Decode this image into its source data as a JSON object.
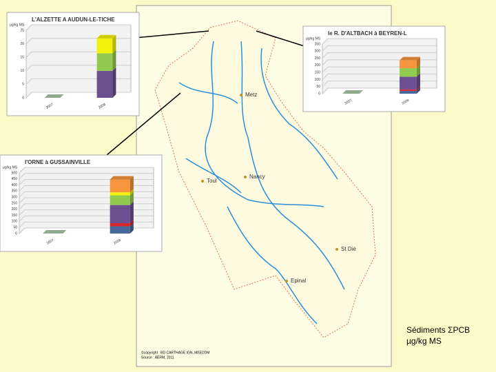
{
  "chart_data": [
    {
      "type": "bar",
      "stacked": true,
      "title": "L'ALZETTE A AUDUN-LE-TICHE",
      "y_label": "µg/kg MS",
      "categories": [
        "2007",
        "2008"
      ],
      "ylim": [
        0,
        25
      ],
      "yticks": [
        0,
        5,
        10,
        15,
        20,
        25
      ],
      "grid": true,
      "series": [
        {
          "color": "#6b4f8f",
          "values": [
            0,
            10
          ]
        },
        {
          "color": "#92c94f",
          "values": [
            0,
            6.5
          ]
        },
        {
          "color": "#f4f10a",
          "values": [
            0,
            5.5
          ]
        }
      ]
    },
    {
      "type": "bar",
      "stacked": true,
      "title": "le R. D'ALTBACH à BEYREN-L",
      "y_label": "µg/kg MS",
      "categories": [
        "2007",
        "2008"
      ],
      "ylim": [
        0,
        350
      ],
      "yticks": [
        0,
        50,
        100,
        150,
        200,
        250,
        300,
        350
      ],
      "grid": true,
      "series": [
        {
          "color": "#46689a",
          "values": [
            0,
            20
          ]
        },
        {
          "color": "#d8242a",
          "values": [
            0,
            10
          ]
        },
        {
          "color": "#6b4f8f",
          "values": [
            0,
            90
          ]
        },
        {
          "color": "#92c94f",
          "values": [
            0,
            60
          ]
        },
        {
          "color": "#f7953f",
          "values": [
            0,
            55
          ]
        }
      ]
    },
    {
      "type": "bar",
      "stacked": true,
      "title": "l'ORNE à GUSSAINVILLE",
      "y_label": "µg/kg MS",
      "categories": [
        "2007",
        "2008"
      ],
      "ylim": [
        0,
        500
      ],
      "yticks": [
        0,
        50,
        100,
        150,
        200,
        250,
        300,
        350,
        400,
        450,
        500
      ],
      "grid": true,
      "series": [
        {
          "color": "#46689a",
          "values": [
            0,
            60
          ]
        },
        {
          "color": "#d8242a",
          "values": [
            0,
            25
          ]
        },
        {
          "color": "#6b4f8f",
          "values": [
            0,
            150
          ]
        },
        {
          "color": "#92c94f",
          "values": [
            0,
            80
          ]
        },
        {
          "color": "#f4f10a",
          "values": [
            0,
            25
          ]
        },
        {
          "color": "#f7953f",
          "values": [
            0,
            105
          ]
        }
      ]
    }
  ],
  "map": {
    "cities": [
      "Metz",
      "Toul",
      "Nancy",
      "St Dié",
      "Epinal"
    ],
    "legend_title": "Sédiments ΣPCB",
    "legend_unit": "µg/kg MS",
    "credits": [
      "©copyright : BD CARTHAGE IGN, MEEDDM",
      "Source : AERM, 2011"
    ]
  }
}
